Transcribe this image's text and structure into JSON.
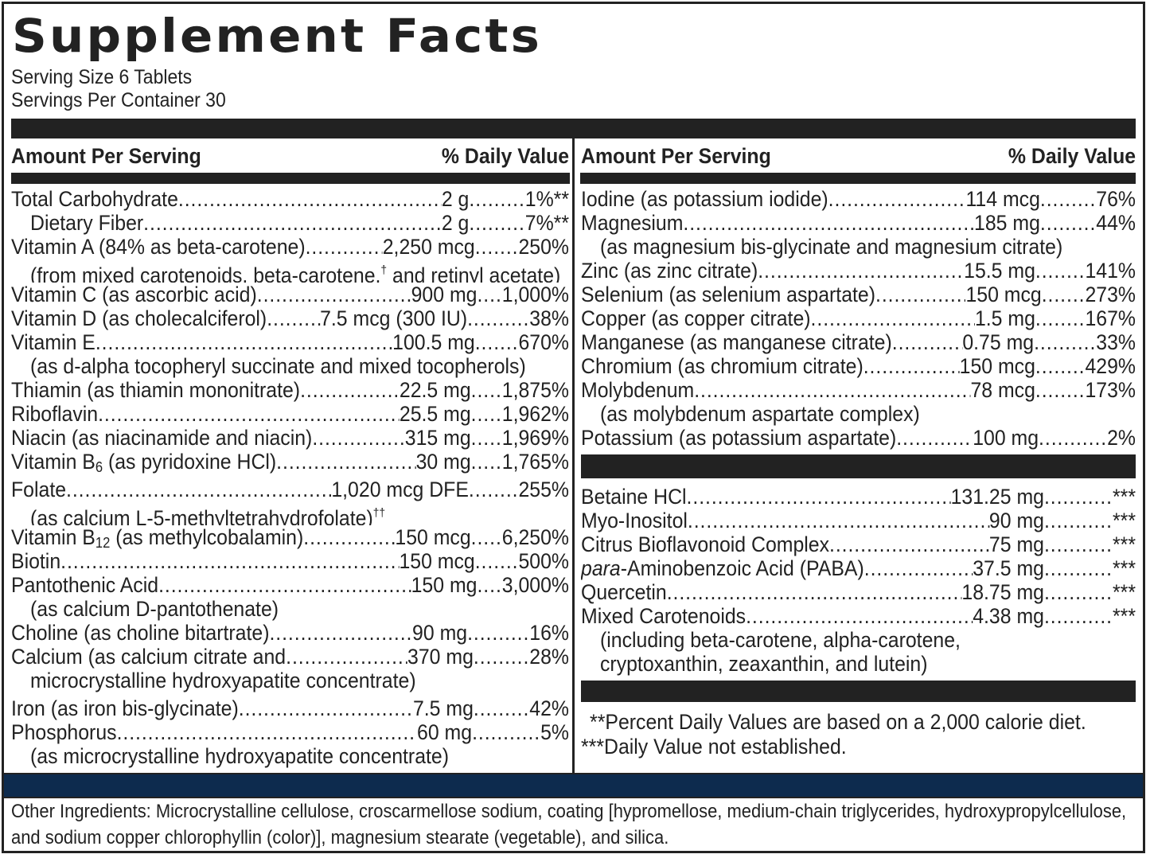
{
  "label": {
    "title": "Supplement Facts",
    "serving_size": "Serving Size 6 Tablets",
    "servings_per_container": "Servings Per Container 30",
    "header": {
      "amount_per_serving": "Amount Per Serving",
      "daily_value": "% Daily Value"
    },
    "left_column": [
      {
        "name": "Total Carbohydrate ",
        "amount": "2 g",
        "dots2": ".........",
        "dv": "1%**"
      },
      {
        "name": "Dietary Fiber",
        "amount": "2 g",
        "dots2": ".........",
        "dv": "7%**",
        "indent": true
      },
      {
        "name": "Vitamin A (84% as beta-carotene)",
        "amount": " 2,250 mcg",
        "dots2": ".......",
        "dv": " 250%"
      },
      {
        "note": "(from mixed carotenoids, beta-carotene,",
        "note_sup": "†",
        "note_tail": " and retinyl acetate)"
      },
      {
        "name": "Vitamin C (as ascorbic acid) ",
        "amount": "900 mg",
        "dots2": "....",
        "dv": " 1,000%"
      },
      {
        "name": "Vitamin D (as cholecalciferol)",
        "amount": " 7.5 mcg (300 IU)",
        "dots2": "..........",
        "dv": "38%"
      },
      {
        "name": "Vitamin E",
        "amount": " 100.5 mg",
        "dots2": ".......",
        "dv": " 670%"
      },
      {
        "note": "(as d-alpha tocopheryl succinate and mixed tocopherols)"
      },
      {
        "name": "Thiamin (as thiamin mononitrate) ",
        "amount": "22.5 mg",
        "dots2": ".....",
        "dv": "1,875%"
      },
      {
        "name": "Riboflavin",
        "amount": "25.5 mg",
        "dots2": ".....",
        "dv": "1,962%"
      },
      {
        "name": "Niacin (as niacinamide and niacin)",
        "amount": " 315 mg",
        "dots2": ".....",
        "dv": "1,969%"
      },
      {
        "name": "Vitamin B",
        "name_sub": "6",
        "name_tail": " (as pyridoxine HCl) ",
        "amount": "30 mg",
        "dots2": ".....",
        "dv": "1,765%"
      },
      {
        "gap": true
      },
      {
        "name": "Folate",
        "amount": " 1,020 mcg DFE",
        "dots2": "........",
        "dv": "255%"
      },
      {
        "note": "(as calcium L-5-methyltetrahydrofolate)",
        "note_sup": "††"
      },
      {
        "name": "Vitamin B",
        "name_sub": "12",
        "name_tail": " (as methylcobalamin)",
        "amount": " 150 mcg",
        "dots2": ".....",
        "dv": "6,250%"
      },
      {
        "name": "Biotin ",
        "amount": " 150 mcg",
        "dots2": ".......",
        "dv": " 500%"
      },
      {
        "name": "Pantothenic Acid",
        "amount": "150 mg",
        "dots2": "....",
        "dv": " 3,000%"
      },
      {
        "note": "(as calcium D-pantothenate)"
      },
      {
        "name": "Choline (as choline bitartrate) ",
        "amount": "90 mg",
        "dots2": "..........",
        "dv": "16%"
      },
      {
        "name": "Calcium (as calcium citrate and ",
        "amount": "370 mg",
        "dots2": ".........",
        "dv": " 28%"
      },
      {
        "note": "microcrystalline hydroxyapatite concentrate)"
      },
      {
        "gap": true
      },
      {
        "name": "Iron (as iron bis-glycinate)",
        "amount": "7.5 mg",
        "dots2": ".........",
        "dv": " 42%"
      },
      {
        "name": "Phosphorus",
        "amount": "60 mg",
        "dots2": "...........",
        "dv": "5%"
      },
      {
        "note": "(as microcrystalline hydroxyapatite concentrate)"
      }
    ],
    "right_column": [
      {
        "name": "Iodine (as potassium iodide)",
        "amount": "114 mcg",
        "dots2": ".........",
        "dv": " 76%"
      },
      {
        "name": "Magnesium ",
        "amount": "185 mg",
        "dots2": ".........",
        "dv": " 44%"
      },
      {
        "note": "(as magnesium bis-glycinate and magnesium citrate)"
      },
      {
        "name": "Zinc (as zinc citrate) ",
        "amount": "15.5 mg",
        "dots2": "........",
        "dv": "141%"
      },
      {
        "name": "Selenium (as selenium aspartate) ",
        "amount": " 150 mcg",
        "dots2": ".......",
        "dv": " 273%"
      },
      {
        "name": "Copper (as copper citrate) ",
        "amount": "1.5 mg",
        "dots2": "........",
        "dv": "167%"
      },
      {
        "name": "Manganese (as manganese citrate)  ",
        "amount": "0.75 mg",
        "dots2": "..........",
        "dv": "33%"
      },
      {
        "name": "Chromium (as chromium citrate)",
        "amount": " 150 mcg",
        "dots2": "........",
        "dv": "429%"
      },
      {
        "name": "Molybdenum ",
        "amount": "78 mcg",
        "dots2": "........",
        "dv": "173%"
      },
      {
        "note": "(as molybdenum aspartate complex)"
      },
      {
        "name": "Potassium (as potassium aspartate)",
        "amount": " 100 mg",
        "dots2": "...........",
        "dv": " 2%"
      }
    ],
    "other_dietary": [
      {
        "name": "Betaine HCl",
        "amount": "131.25 mg",
        "dots2": "...........",
        "dv": "***"
      },
      {
        "name": "Myo-Inositol",
        "amount": "90 mg",
        "dots2": "...........",
        "dv": "***"
      },
      {
        "name": "Citrus Bioflavonoid Complex",
        "amount": "75 mg",
        "dots2": "...........",
        "dv": "***"
      },
      {
        "name_italic": "para",
        "name": "-Aminobenzoic Acid (PABA)",
        "amount": "37.5 mg",
        "dots2": "...........",
        "dv": "***"
      },
      {
        "name": "Quercetin ",
        "amount": "18.75 mg",
        "dots2": "...........",
        "dv": "***"
      },
      {
        "name": "Mixed Carotenoids",
        "amount": " 4.38 mg",
        "dots2": "...........",
        "dv": "***"
      },
      {
        "note": "(including beta-carotene, alpha-carotene,"
      },
      {
        "note": "cryptoxanthin, zeaxanthin, and lutein)"
      }
    ],
    "footnotes": [
      "**Percent Daily Values are based on a 2,000 calorie diet.",
      "***Daily Value not established."
    ],
    "other_ingredients": "Other Ingredients: Microcrystalline cellulose, croscarmellose sodium, coating [hypromellose, medium-chain triglycerides, hydroxypropylcellulose, and sodium copper chlorophyllin (color)], magnesium stearate (vegetable), and silica.",
    "colors": {
      "ink": "#222222",
      "navy_bar": "#0d2b4e",
      "background": "#ffffff"
    }
  }
}
